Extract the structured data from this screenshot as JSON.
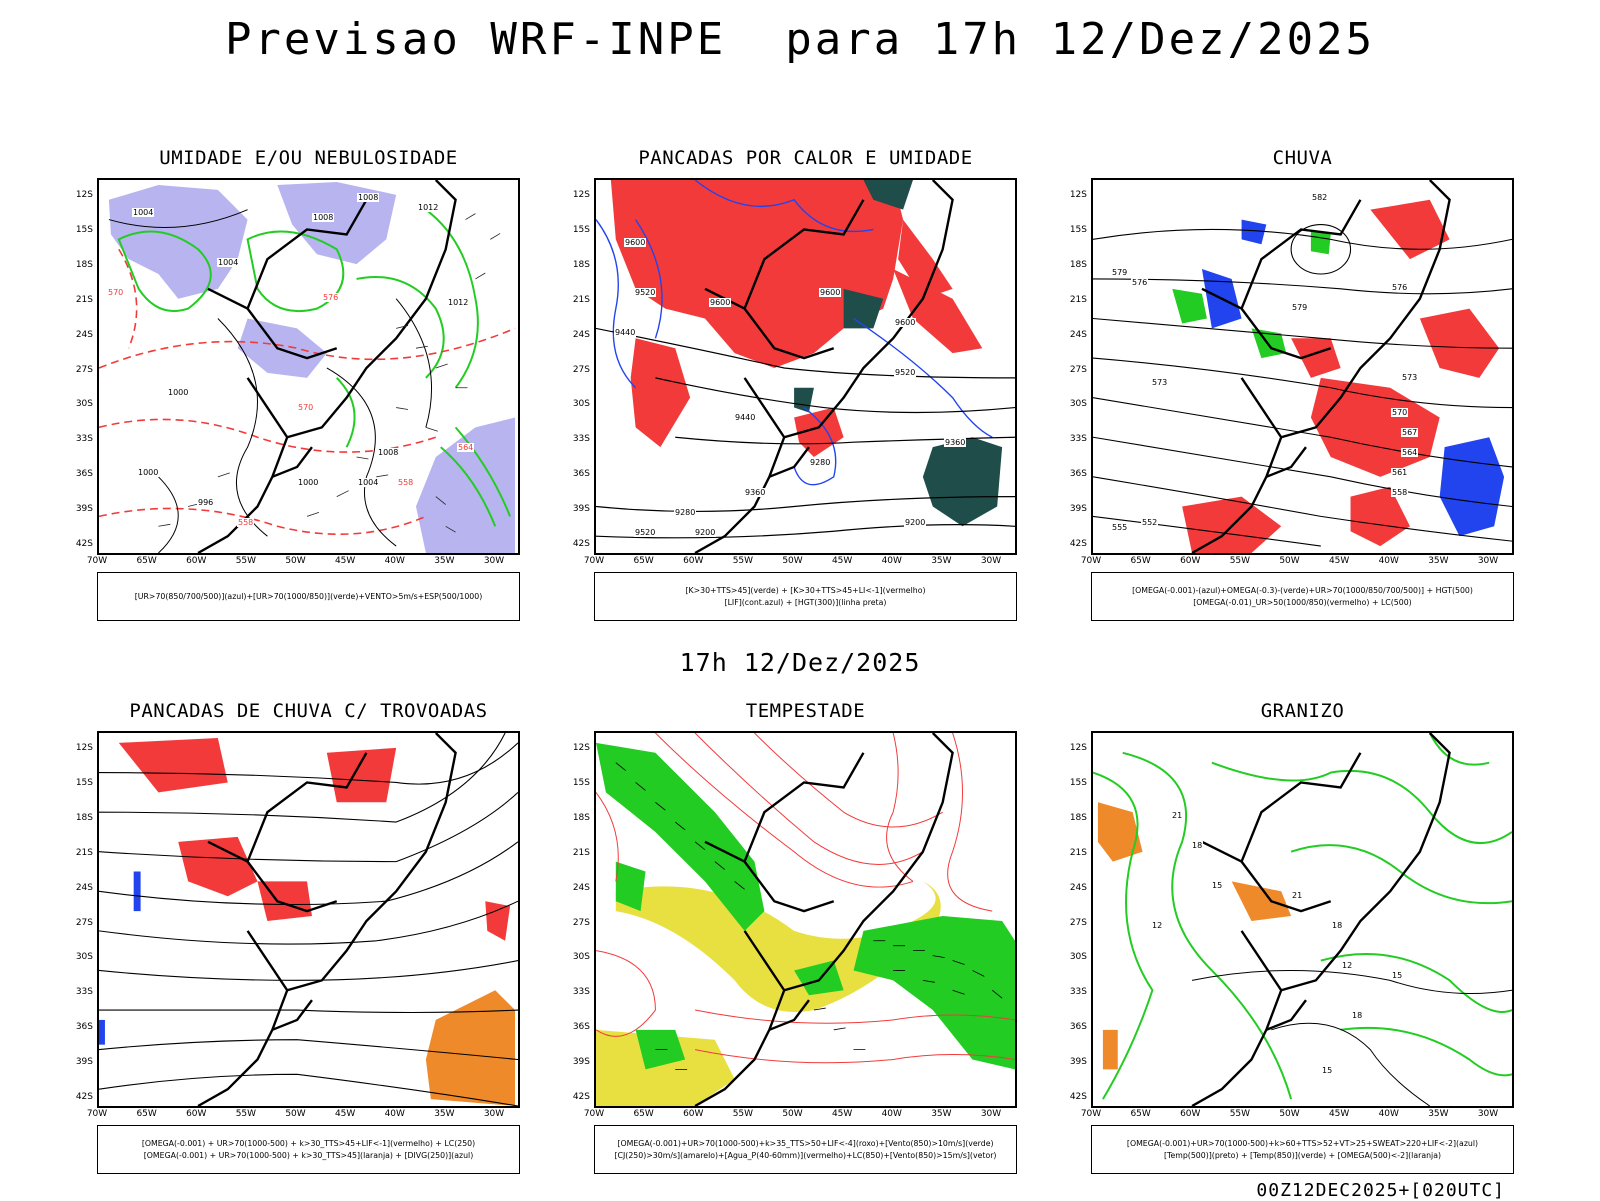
{
  "header": {
    "title": "Previsao WRF-INPE  para 17h 12/Dez/2025",
    "mid_time": "17h 12/Dez/2025",
    "footer_stamp": "00Z12DEC2025+[020UTC]"
  },
  "axes": {
    "y_ticks": [
      "12S",
      "15S",
      "18S",
      "21S",
      "24S",
      "27S",
      "30S",
      "33S",
      "36S",
      "39S",
      "42S"
    ],
    "x_ticks": [
      "70W",
      "65W",
      "60W",
      "55W",
      "50W",
      "45W",
      "40W",
      "35W",
      "30W"
    ]
  },
  "colors": {
    "red": "#f23a3a",
    "green": "#22cc22",
    "blue": "#2244ee",
    "lavender": "#b8b4f0",
    "orange": "#ee8a2a",
    "yellow": "#e8e040",
    "darkteal": "#1f4d4a"
  },
  "panels": [
    {
      "title": "UMIDADE E/OU NEBULOSIDADE",
      "legend": [
        "[UR>70(850/700/500)](azul)+[UR>70(1000/850)](verde)+VENTO>5m/s+ESP(500/1000)"
      ],
      "labels": [
        "1004",
        "1008",
        "1008",
        "1012",
        "1012",
        "1004",
        "1000",
        "1008",
        "996",
        "1000",
        "1004",
        "1000",
        "570",
        "576",
        "564",
        "558",
        "570",
        "558"
      ]
    },
    {
      "title": "PANCADAS POR CALOR E UMIDADE",
      "legend": [
        "[K>30+TTS>45](verde) + [K>30+TTS>45+LI<-1](vermelho)",
        "[LIF](cont.azul) + [HGT(300)](linha preta)"
      ],
      "labels": [
        "9600",
        "9520",
        "9440",
        "9600",
        "9600",
        "9520",
        "9360",
        "9440",
        "9280",
        "9200",
        "9200",
        "9280",
        "9600",
        "9520",
        "9360"
      ]
    },
    {
      "title": "CHUVA",
      "legend": [
        "[OMEGA(-0.001)-(azul)+OMEGA(-0.3)-(verde)+UR>70(1000/850/700/500)] + HGT(500)",
        "[OMEGA(-0.01)_UR>50(1000/850)(vermelho) + LC(500)"
      ],
      "labels": [
        "582",
        "579",
        "576",
        "573",
        "570",
        "567",
        "564",
        "561",
        "558",
        "555",
        "552",
        "579",
        "576",
        "573"
      ]
    },
    {
      "title": "PANCADAS DE CHUVA C/ TROVOADAS",
      "legend": [
        "[OMEGA(-0.001) + UR>70(1000-500) + k>30_TTS>45+LIF<-1](vermelho) + LC(250)",
        "[OMEGA(-0.001) + UR>70(1000-500) + k>30_TTS>45](laranja) + [DIVG(250)](azul)"
      ],
      "labels": []
    },
    {
      "title": "TEMPESTADE",
      "legend": [
        "[OMEGA(-0.001)+UR>70(1000-500)+k>35_TTS>50+LIF<-4](roxo)+[Vento(850)>10m/s](verde)",
        "[CJ(250)>30m/s](amarelo)+[Agua_P(40-60mm)](vermelho)+LC(850)+[Vento(850)>15m/s](vetor)"
      ],
      "labels": []
    },
    {
      "title": "GRANIZO",
      "legend": [
        "[OMEGA(-0.001)+UR>70(1000-500)+k>60+TTS>52+VT>25+SWEAT>220+LIF<-2](azul)",
        "[Temp(500)](preto) + [Temp(850)](verde) + [OMEGA(500)<-2](laranja)"
      ],
      "labels": [
        "12",
        "15",
        "18",
        "21",
        "12",
        "15",
        "18",
        "21",
        "18",
        "15"
      ]
    }
  ]
}
